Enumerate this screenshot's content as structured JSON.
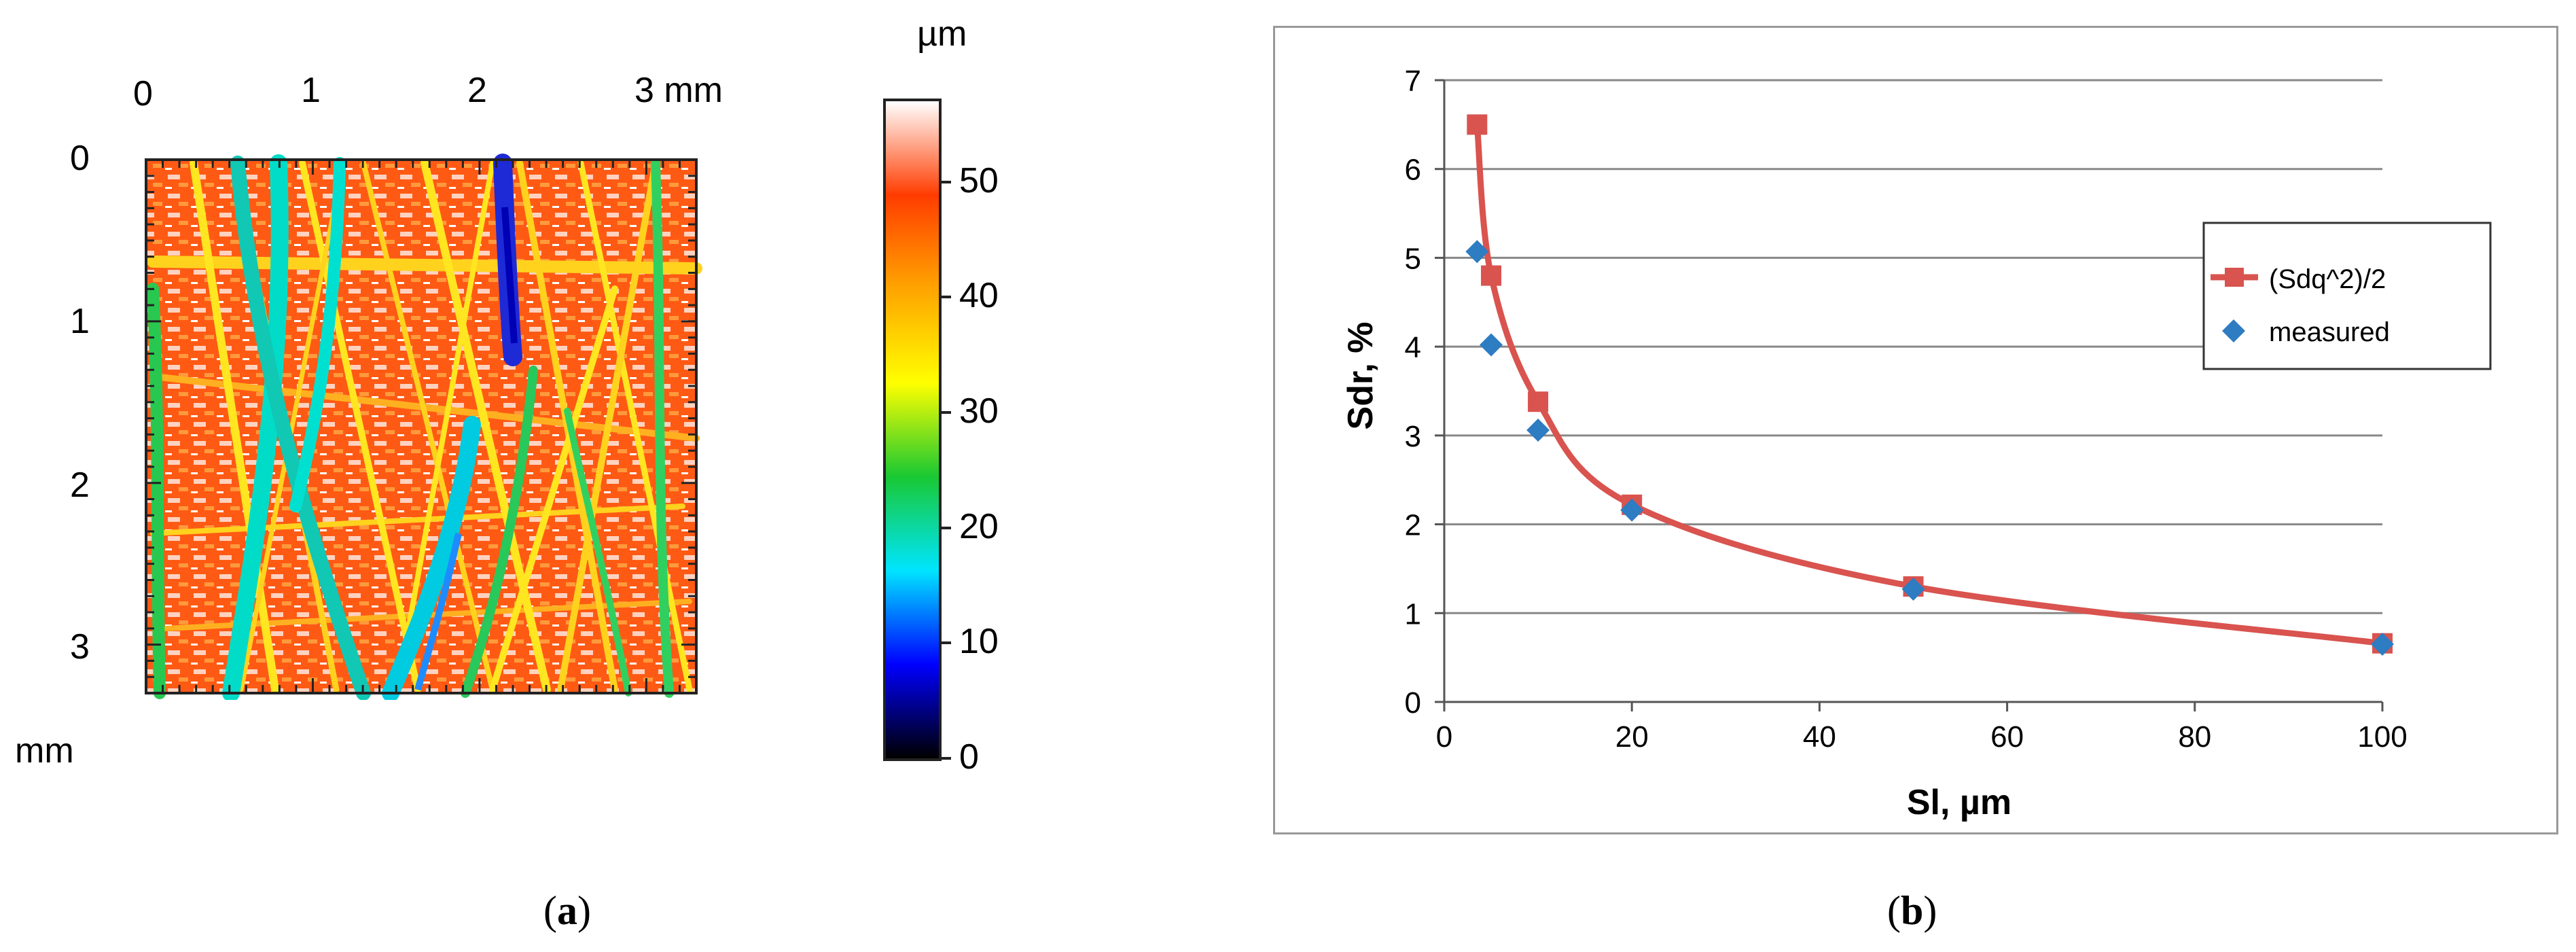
{
  "panel_a": {
    "top_ticks": [
      "0",
      "1",
      "2",
      "3 mm"
    ],
    "left_ticks": [
      "0",
      "1",
      "2",
      "3"
    ],
    "unit_left": "mm",
    "colorbar_unit": "µm",
    "colorbar_ticks": [
      "0",
      "10",
      "20",
      "30",
      "40",
      "50"
    ],
    "colorbar_range": [
      0,
      57
    ],
    "colormap": [
      "#000000",
      "#0000ff",
      "#00e5ff",
      "#19c832",
      "#ffff00",
      "#ffa500",
      "#ff3c00",
      "#ffffff"
    ],
    "caption_letter": "a"
  },
  "panel_b": {
    "caption_letter": "b",
    "colors": {
      "model": "#d9534f",
      "measured": "#2e7cc2",
      "grid": "#888888"
    }
  },
  "chart_data": {
    "type": "scatter",
    "xlabel": "Sl, µm",
    "ylabel": "Sdr, %",
    "xlim": [
      0,
      100
    ],
    "ylim": [
      0,
      7
    ],
    "xticks": [
      "0",
      "20",
      "40",
      "60",
      "80",
      "100"
    ],
    "yticks": [
      "0",
      "1",
      "2",
      "3",
      "4",
      "5",
      "6",
      "7"
    ],
    "grid": "horizontal",
    "legend_position": "right",
    "series": [
      {
        "name": "(Sdq^2)/2",
        "kind": "line+square",
        "x": [
          3.5,
          5,
          10,
          20,
          50,
          100
        ],
        "y": [
          6.5,
          4.8,
          3.38,
          2.22,
          1.3,
          0.66
        ]
      },
      {
        "name": "measured",
        "kind": "diamond",
        "x": [
          3.5,
          5,
          10,
          20,
          50,
          100
        ],
        "y": [
          5.07,
          4.02,
          3.06,
          2.16,
          1.27,
          0.65
        ]
      }
    ]
  }
}
